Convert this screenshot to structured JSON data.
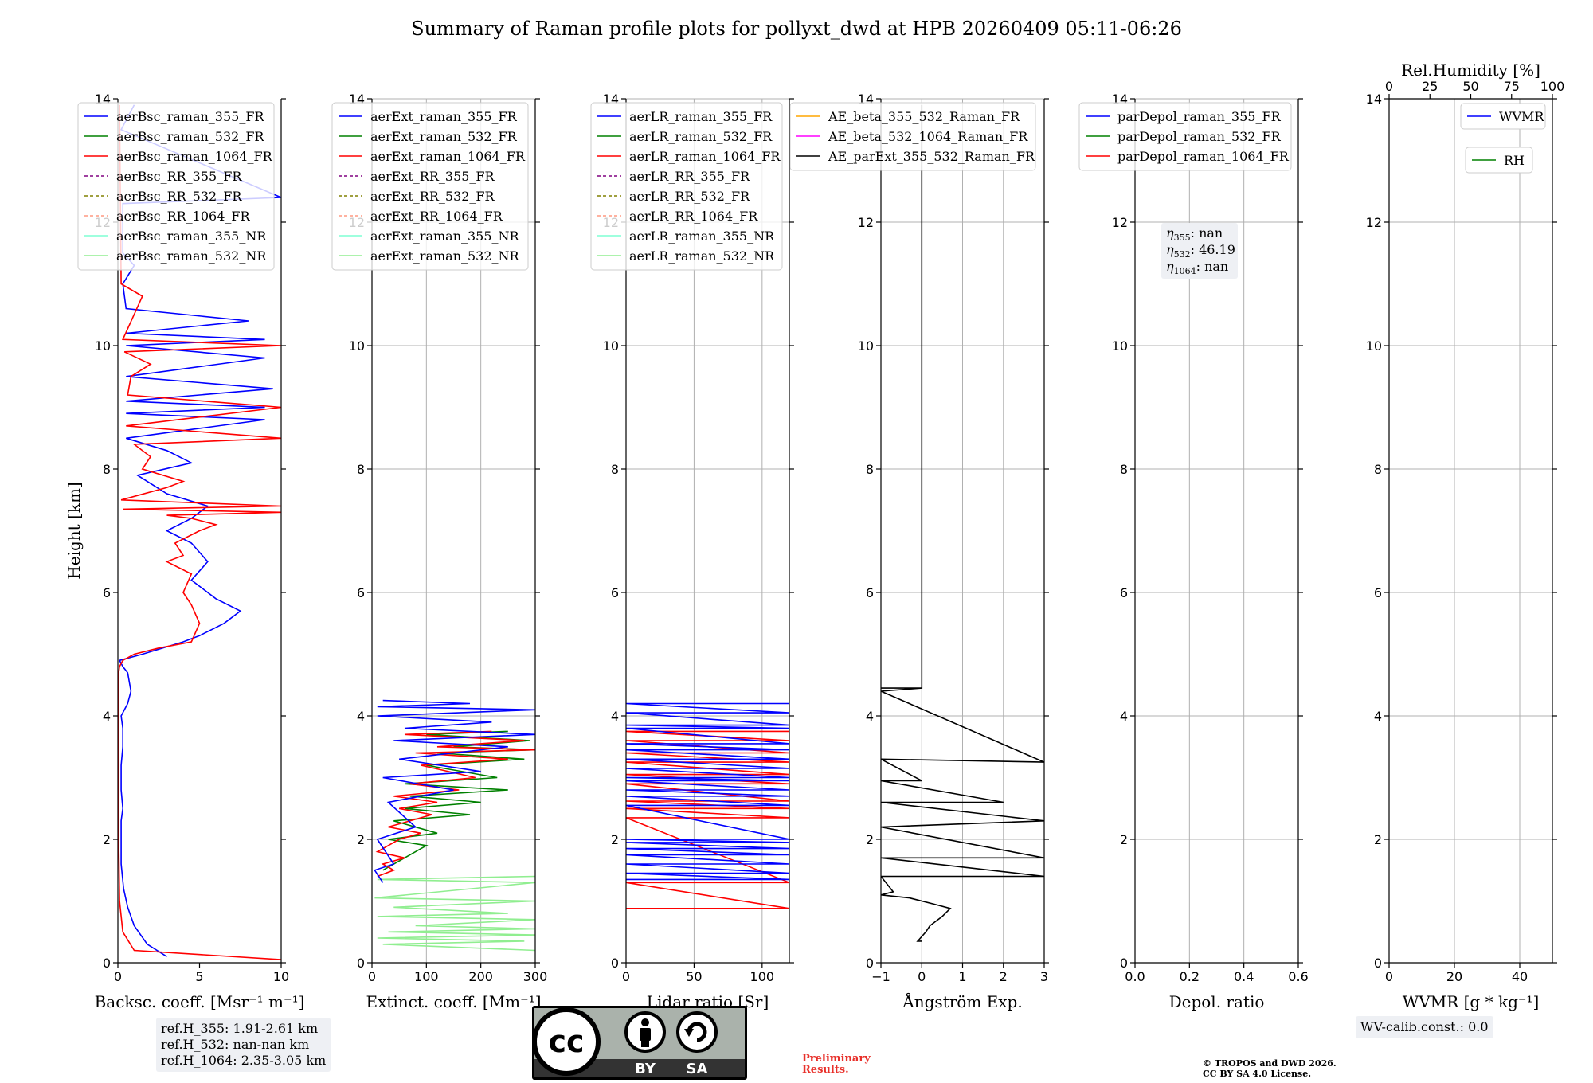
{
  "figure_title": "Summary of Raman profile plots for pollyxt_dwd at HPB 20260409 05:11-06:26",
  "chart_data": [
    {
      "type": "line",
      "name": "backscatter",
      "xlabel": "Backsc. coeff. [Msr⁻¹ m⁻¹]",
      "ylabel": "Height [km]",
      "xlim": [
        0,
        10
      ],
      "ylim": [
        0,
        14
      ],
      "xticks": [
        0,
        5,
        10
      ],
      "yticks": [
        0,
        2,
        4,
        6,
        8,
        10,
        12,
        14
      ],
      "grid": false,
      "legend_position": "top-left",
      "legend": [
        {
          "name": "aerBsc_raman_355_FR",
          "color": "#0000ff",
          "dash": false
        },
        {
          "name": "aerBsc_raman_532_FR",
          "color": "#008000",
          "dash": false
        },
        {
          "name": "aerBsc_raman_1064_FR",
          "color": "#ff0000",
          "dash": false
        },
        {
          "name": "aerBsc_RR_355_FR",
          "color": "#800080",
          "dash": true
        },
        {
          "name": "aerBsc_RR_532_FR",
          "color": "#808000",
          "dash": true
        },
        {
          "name": "aerBsc_RR_1064_FR",
          "color": "#ff9980",
          "dash": true
        },
        {
          "name": "aerBsc_raman_355_NR",
          "color": "#7fffd4",
          "dash": false
        },
        {
          "name": "aerBsc_raman_532_NR",
          "color": "#90ee90",
          "dash": false
        }
      ],
      "series": [
        {
          "name": "aerBsc_raman_355_FR",
          "color": "#0000ff",
          "x": [
            3.0,
            1.8,
            1.0,
            0.6,
            0.35,
            0.2,
            0.2,
            0.2,
            0.3,
            0.2,
            0.2,
            0.3,
            0.3,
            0.2,
            0.6,
            0.8,
            0.6,
            0.3,
            0.1,
            1.5,
            4.0,
            5.0,
            6.5,
            7.5,
            6.0,
            4.5,
            5.5,
            4.5,
            3.0,
            4.5,
            5.5,
            3.0,
            1.2,
            4.5,
            3.0,
            0.5,
            9.0,
            0.5,
            9.0,
            0.5,
            9.5,
            0.5,
            9.0,
            0.5,
            9.0,
            0.5,
            8.0,
            0.5,
            0.3,
            1.0,
            0.3,
            0.3,
            0.3,
            0.3,
            10.0,
            0.2,
            1.0
          ],
          "y": [
            0.1,
            0.3,
            0.6,
            0.9,
            1.2,
            1.6,
            2.0,
            2.3,
            2.5,
            2.8,
            3.2,
            3.5,
            3.8,
            4.0,
            4.2,
            4.4,
            4.7,
            4.8,
            4.9,
            5.0,
            5.2,
            5.3,
            5.5,
            5.7,
            5.9,
            6.2,
            6.5,
            6.8,
            7.0,
            7.2,
            7.4,
            7.6,
            7.9,
            8.1,
            8.3,
            8.5,
            8.8,
            8.9,
            9.0,
            9.1,
            9.3,
            9.5,
            9.8,
            10.0,
            10.1,
            10.2,
            10.4,
            10.6,
            11.0,
            11.3,
            11.5,
            12.0,
            12.2,
            12.3,
            12.4,
            13.5,
            13.9
          ]
        },
        {
          "name": "aerBsc_raman_1064_FR",
          "color": "#ff0000",
          "x": [
            10.0,
            1.0,
            0.3,
            0.1,
            0.05,
            0.05,
            0.05,
            0.05,
            0.05,
            0.1,
            0.3,
            1.0,
            2.5,
            4.5,
            5.0,
            4.5,
            4.0,
            4.5,
            3.0,
            4.0,
            3.5,
            5.0,
            6.0,
            4.5,
            3.0,
            10.0,
            0.3,
            10.0,
            0.2,
            3.0,
            4.0,
            1.5,
            2.0,
            1.0,
            10.0,
            0.5,
            10.0,
            0.6,
            0.8,
            2.0,
            0.4,
            10.0,
            0.3,
            1.5,
            0.2,
            0.1
          ],
          "y": [
            0.05,
            0.2,
            0.5,
            1.0,
            2.0,
            3.0,
            4.0,
            4.5,
            4.7,
            4.8,
            4.9,
            5.0,
            5.1,
            5.2,
            5.5,
            5.8,
            6.0,
            6.3,
            6.5,
            6.6,
            6.8,
            7.0,
            7.1,
            7.2,
            7.25,
            7.3,
            7.35,
            7.4,
            7.5,
            7.7,
            7.8,
            8.0,
            8.2,
            8.4,
            8.5,
            8.7,
            9.0,
            9.2,
            9.5,
            9.7,
            9.9,
            10.0,
            10.1,
            10.8,
            11.0,
            13.9
          ]
        }
      ],
      "ref_text": [
        "ref.H_355: 1.91-2.61 km",
        "ref.H_532: nan-nan km",
        "ref.H_1064: 2.35-3.05 km"
      ]
    },
    {
      "type": "line",
      "name": "extinction",
      "xlabel": "Extinct. coeff. [Mm⁻¹]",
      "xlim": [
        0,
        300
      ],
      "ylim": [
        0,
        14
      ],
      "xticks": [
        0,
        100,
        200,
        300
      ],
      "yticks": [
        0,
        2,
        4,
        6,
        8,
        10,
        12,
        14
      ],
      "grid": true,
      "legend_position": "top-left",
      "legend": [
        {
          "name": "aerExt_raman_355_FR",
          "color": "#0000ff",
          "dash": false
        },
        {
          "name": "aerExt_raman_532_FR",
          "color": "#008000",
          "dash": false
        },
        {
          "name": "aerExt_raman_1064_FR",
          "color": "#ff0000",
          "dash": false
        },
        {
          "name": "aerExt_RR_355_FR",
          "color": "#800080",
          "dash": true
        },
        {
          "name": "aerExt_RR_532_FR",
          "color": "#808000",
          "dash": true
        },
        {
          "name": "aerExt_RR_1064_FR",
          "color": "#ff9980",
          "dash": true
        },
        {
          "name": "aerExt_raman_355_NR",
          "color": "#7fffd4",
          "dash": false
        },
        {
          "name": "aerExt_raman_532_NR",
          "color": "#90ee90",
          "dash": false
        }
      ],
      "series": [
        {
          "name": "aerExt_raman_532_NR",
          "color": "#90ee90",
          "x": [
            300,
            20,
            280,
            10,
            300,
            30,
            300,
            80,
            300,
            10,
            250,
            40,
            300,
            5,
            300,
            10,
            300
          ],
          "y": [
            0.2,
            0.3,
            0.35,
            0.4,
            0.45,
            0.5,
            0.55,
            0.6,
            0.7,
            0.75,
            0.8,
            0.9,
            1.0,
            1.05,
            1.3,
            1.35,
            1.4
          ]
        },
        {
          "name": "aerExt_raman_532_FR",
          "color": "#008000",
          "x": [
            20,
            60,
            100,
            30,
            120,
            40,
            180,
            60,
            200,
            70,
            250,
            60,
            230,
            100,
            280,
            120,
            300,
            150,
            290,
            100,
            250
          ],
          "y": [
            1.5,
            1.7,
            1.9,
            2.0,
            2.1,
            2.3,
            2.4,
            2.5,
            2.6,
            2.7,
            2.8,
            2.9,
            3.0,
            3.2,
            3.3,
            3.4,
            3.45,
            3.5,
            3.6,
            3.7,
            3.75
          ]
        },
        {
          "name": "aerExt_raman_1064_FR",
          "color": "#ff0000",
          "x": [
            10,
            40,
            20,
            60,
            10,
            50,
            90,
            30,
            110,
            50,
            120,
            40,
            160,
            70,
            190,
            90,
            250,
            80,
            300,
            120,
            280,
            60,
            220
          ],
          "y": [
            1.4,
            1.5,
            1.6,
            1.7,
            1.8,
            2.0,
            2.1,
            2.2,
            2.4,
            2.5,
            2.6,
            2.7,
            2.8,
            2.9,
            3.0,
            3.2,
            3.3,
            3.4,
            3.45,
            3.5,
            3.6,
            3.7,
            3.75
          ]
        },
        {
          "name": "aerExt_raman_355_FR",
          "color": "#0000ff",
          "x": [
            20,
            5,
            40,
            10,
            80,
            30,
            150,
            20,
            200,
            50,
            250,
            40,
            300,
            60,
            220,
            10,
            300,
            10,
            180,
            20
          ],
          "y": [
            1.3,
            1.5,
            1.6,
            2.0,
            2.2,
            2.6,
            2.8,
            3.0,
            3.1,
            3.3,
            3.5,
            3.6,
            3.7,
            3.8,
            3.9,
            4.0,
            4.1,
            4.15,
            4.2,
            4.25
          ]
        }
      ]
    },
    {
      "type": "line",
      "name": "lidar_ratio",
      "xlabel": "Lidar ratio [Sr]",
      "xlim": [
        0,
        120
      ],
      "ylim": [
        0,
        14
      ],
      "xticks": [
        0,
        50,
        100
      ],
      "yticks": [
        0,
        2,
        4,
        6,
        8,
        10,
        12,
        14
      ],
      "grid": true,
      "legend_position": "top-left",
      "legend": [
        {
          "name": "aerLR_raman_355_FR",
          "color": "#0000ff",
          "dash": false
        },
        {
          "name": "aerLR_raman_532_FR",
          "color": "#008000",
          "dash": false
        },
        {
          "name": "aerLR_raman_1064_FR",
          "color": "#ff0000",
          "dash": false
        },
        {
          "name": "aerLR_RR_355_FR",
          "color": "#800080",
          "dash": true
        },
        {
          "name": "aerLR_RR_532_FR",
          "color": "#808000",
          "dash": true
        },
        {
          "name": "aerLR_RR_1064_FR",
          "color": "#ff9980",
          "dash": true
        },
        {
          "name": "aerLR_raman_355_NR",
          "color": "#7fffd4",
          "dash": false
        },
        {
          "name": "aerLR_raman_532_NR",
          "color": "#90ee90",
          "dash": false
        }
      ],
      "series": [
        {
          "name": "aerLR_raman_1064_FR",
          "color": "#ff0000",
          "x": [
            0,
            120,
            0,
            120,
            0,
            120,
            0,
            120,
            0,
            120,
            0,
            120,
            0,
            120,
            0,
            120,
            0,
            120,
            0,
            120,
            0,
            120
          ],
          "y": [
            0.88,
            0.88,
            1.3,
            1.3,
            2.35,
            2.35,
            2.5,
            2.5,
            2.62,
            2.62,
            2.9,
            2.9,
            3.05,
            3.05,
            3.25,
            3.25,
            3.4,
            3.4,
            3.6,
            3.6,
            3.75,
            3.75
          ]
        },
        {
          "name": "aerLR_raman_355_FR",
          "color": "#0000ff",
          "x": [
            0,
            120,
            0,
            120,
            0,
            120,
            0,
            120,
            0,
            120,
            0,
            120,
            0,
            120,
            0,
            120,
            0,
            120,
            0,
            120,
            0,
            120,
            0,
            120,
            0,
            120,
            0,
            120,
            0,
            120,
            0,
            120,
            0,
            120,
            0,
            120,
            0,
            120,
            0,
            120
          ],
          "y": [
            1.35,
            1.35,
            1.45,
            1.45,
            1.6,
            1.6,
            1.75,
            1.75,
            1.85,
            1.85,
            1.95,
            1.95,
            2.0,
            2.0,
            2.55,
            2.55,
            2.7,
            2.7,
            2.8,
            2.8,
            2.95,
            2.95,
            3.0,
            3.0,
            3.15,
            3.15,
            3.3,
            3.3,
            3.45,
            3.45,
            3.55,
            3.55,
            3.8,
            3.8,
            3.85,
            3.85,
            4.05,
            4.05,
            4.2,
            4.2
          ]
        }
      ]
    },
    {
      "type": "line",
      "name": "angstrom",
      "xlabel": "Ångström Exp.",
      "xlim": [
        -1,
        3
      ],
      "ylim": [
        0,
        14
      ],
      "xticks": [
        -1,
        0,
        1,
        2,
        3
      ],
      "yticks": [
        0,
        2,
        4,
        6,
        8,
        10,
        12,
        14
      ],
      "grid": true,
      "legend_position": "top-left",
      "legend": [
        {
          "name": "AE_beta_355_532_Raman_FR",
          "color": "#ffa500",
          "dash": false
        },
        {
          "name": "AE_beta_532_1064_Raman_FR",
          "color": "#ff00ff",
          "dash": false
        },
        {
          "name": "AE_parExt_355_532_Raman_FR",
          "color": "#000000",
          "dash": false
        }
      ],
      "series": [
        {
          "name": "AE_parExt_355_532_Raman_FR",
          "color": "#000000",
          "x": [
            0.0,
            -0.1,
            0.1,
            0.2,
            0.5,
            0.7,
            0.3,
            -0.3,
            -1.0,
            -0.7,
            -1.0,
            3.0,
            -1.0,
            3.0,
            -1.0,
            3.0,
            -1.0,
            2.0,
            -1.0,
            0.0,
            -1.0,
            3.0,
            -1.0,
            0.0,
            -1.0,
            0.0,
            0.0,
            0.0
          ],
          "y": [
            0.35,
            0.35,
            0.5,
            0.6,
            0.75,
            0.88,
            0.95,
            1.05,
            1.1,
            1.15,
            1.4,
            1.4,
            1.7,
            1.7,
            2.2,
            2.3,
            2.6,
            2.6,
            2.95,
            2.95,
            3.3,
            3.25,
            4.4,
            4.45,
            4.45,
            4.45,
            8.0,
            13.9
          ]
        }
      ]
    },
    {
      "type": "line",
      "name": "depolarization",
      "xlabel": "Depol. ratio",
      "xlim": [
        0,
        0.6
      ],
      "ylim": [
        0,
        14
      ],
      "xticks": [
        0.0,
        0.2,
        0.4,
        0.6
      ],
      "xtick_labels": [
        "0.0",
        "0.2",
        "0.4",
        "0.6"
      ],
      "yticks": [
        0,
        2,
        4,
        6,
        8,
        10,
        12,
        14
      ],
      "grid": true,
      "legend_position": "top-left",
      "legend": [
        {
          "name": "parDepol_raman_355_FR",
          "color": "#0000ff",
          "dash": false
        },
        {
          "name": "parDepol_raman_532_FR",
          "color": "#008000",
          "dash": false
        },
        {
          "name": "parDepol_raman_1064_FR",
          "color": "#ff0000",
          "dash": false
        }
      ],
      "series": [],
      "eta": [
        {
          "sub": "355",
          "value": ": nan"
        },
        {
          "sub": "532",
          "value": ": 46.19"
        },
        {
          "sub": "1064",
          "value": ": nan"
        }
      ]
    },
    {
      "type": "line",
      "name": "wvmr",
      "xlabel": "WVMR [g * kg⁻¹]",
      "xlim": [
        0,
        50
      ],
      "ylim": [
        0,
        14
      ],
      "xticks": [
        0,
        20,
        40
      ],
      "yticks": [
        0,
        2,
        4,
        6,
        8,
        10,
        12,
        14
      ],
      "grid": true,
      "top_axis": {
        "label": "Rel.Humidity [%]",
        "range": [
          0,
          100
        ],
        "ticks": [
          0,
          25,
          50,
          75,
          100
        ]
      },
      "legend": [
        {
          "name": "WVMR",
          "color": "#0000ff",
          "dash": false
        }
      ],
      "legend2": [
        {
          "name": "RH",
          "color": "#008000",
          "dash": false
        }
      ],
      "series": [],
      "calib_text": "WV-calib.const.: 0.0"
    }
  ],
  "license_badge": {
    "main": "cc",
    "by": "BY",
    "sa": "SA"
  },
  "preliminary": [
    "Preliminary",
    "Results."
  ],
  "copyright": [
    "© TROPOS and DWD 2026.",
    "CC BY SA 4.0 License."
  ],
  "colors": {
    "blue": "#0000ff",
    "green": "#008000",
    "red": "#ff0000",
    "badge_grey": "#aab2ab",
    "badge_dark": "#333333"
  }
}
